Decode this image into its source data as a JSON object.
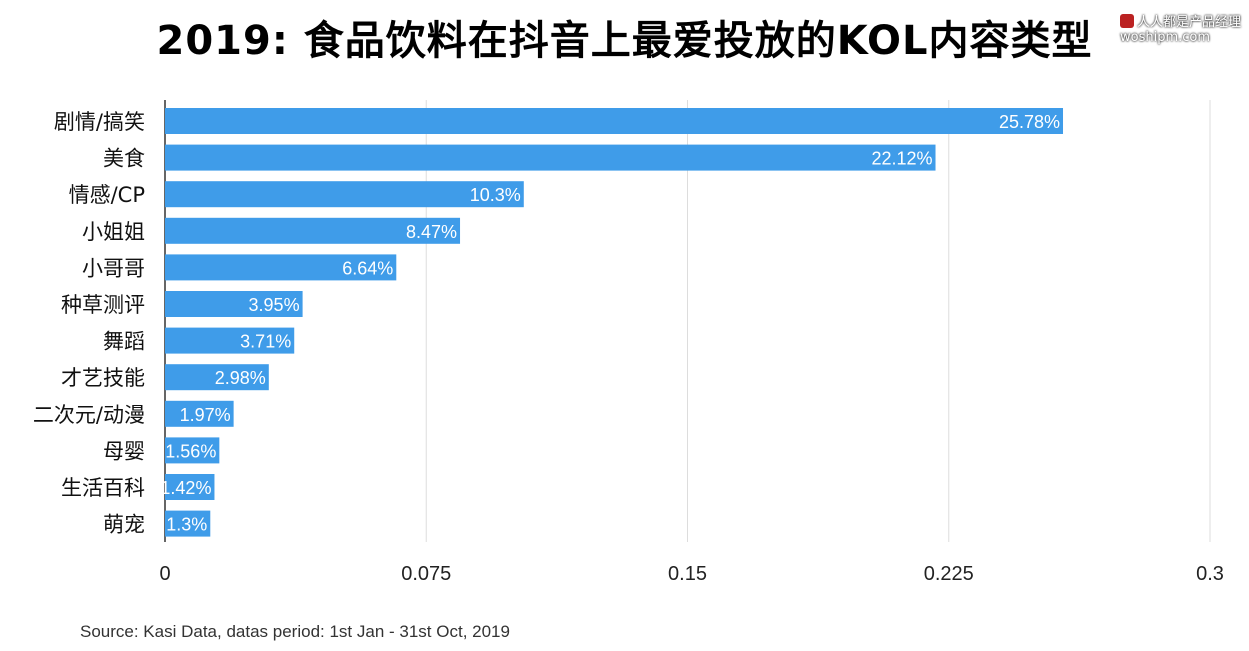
{
  "title": "2019: 食品饮料在抖音上最爱投放的KOL内容类型",
  "watermark": {
    "line1": "人人都是产品经理",
    "line2": "woshipm.com"
  },
  "source": "Source: Kasi Data, datas period: 1st Jan - 31st Oct, 2019",
  "colors": {
    "bar": "#3f9ce9",
    "grid": "#dddddd",
    "axis": "#333333"
  },
  "chart_data": {
    "type": "bar",
    "orientation": "horizontal",
    "categories": [
      "剧情/搞笑",
      "美食",
      "情感/CP",
      "小姐姐",
      "小哥哥",
      "种草测评",
      "舞蹈",
      "才艺技能",
      "二次元/动漫",
      "母婴",
      "生活百科",
      "萌宠"
    ],
    "values": [
      0.2578,
      0.2212,
      0.103,
      0.0847,
      0.0664,
      0.0395,
      0.0371,
      0.0298,
      0.0197,
      0.0156,
      0.0142,
      0.013
    ],
    "data_labels": [
      "25.78%",
      "22.12%",
      "10.3%",
      "8.47%",
      "6.64%",
      "3.95%",
      "3.71%",
      "2.98%",
      "1.97%",
      "1.56%",
      "1.42%",
      "1.3%"
    ],
    "xlim": [
      0,
      0.3
    ],
    "xticks": [
      0,
      0.075,
      0.15,
      0.225,
      0.3
    ],
    "xtick_labels": [
      "0",
      "0.075",
      "0.15",
      "0.225",
      "0.3"
    ],
    "grid": true,
    "legend": "none"
  }
}
